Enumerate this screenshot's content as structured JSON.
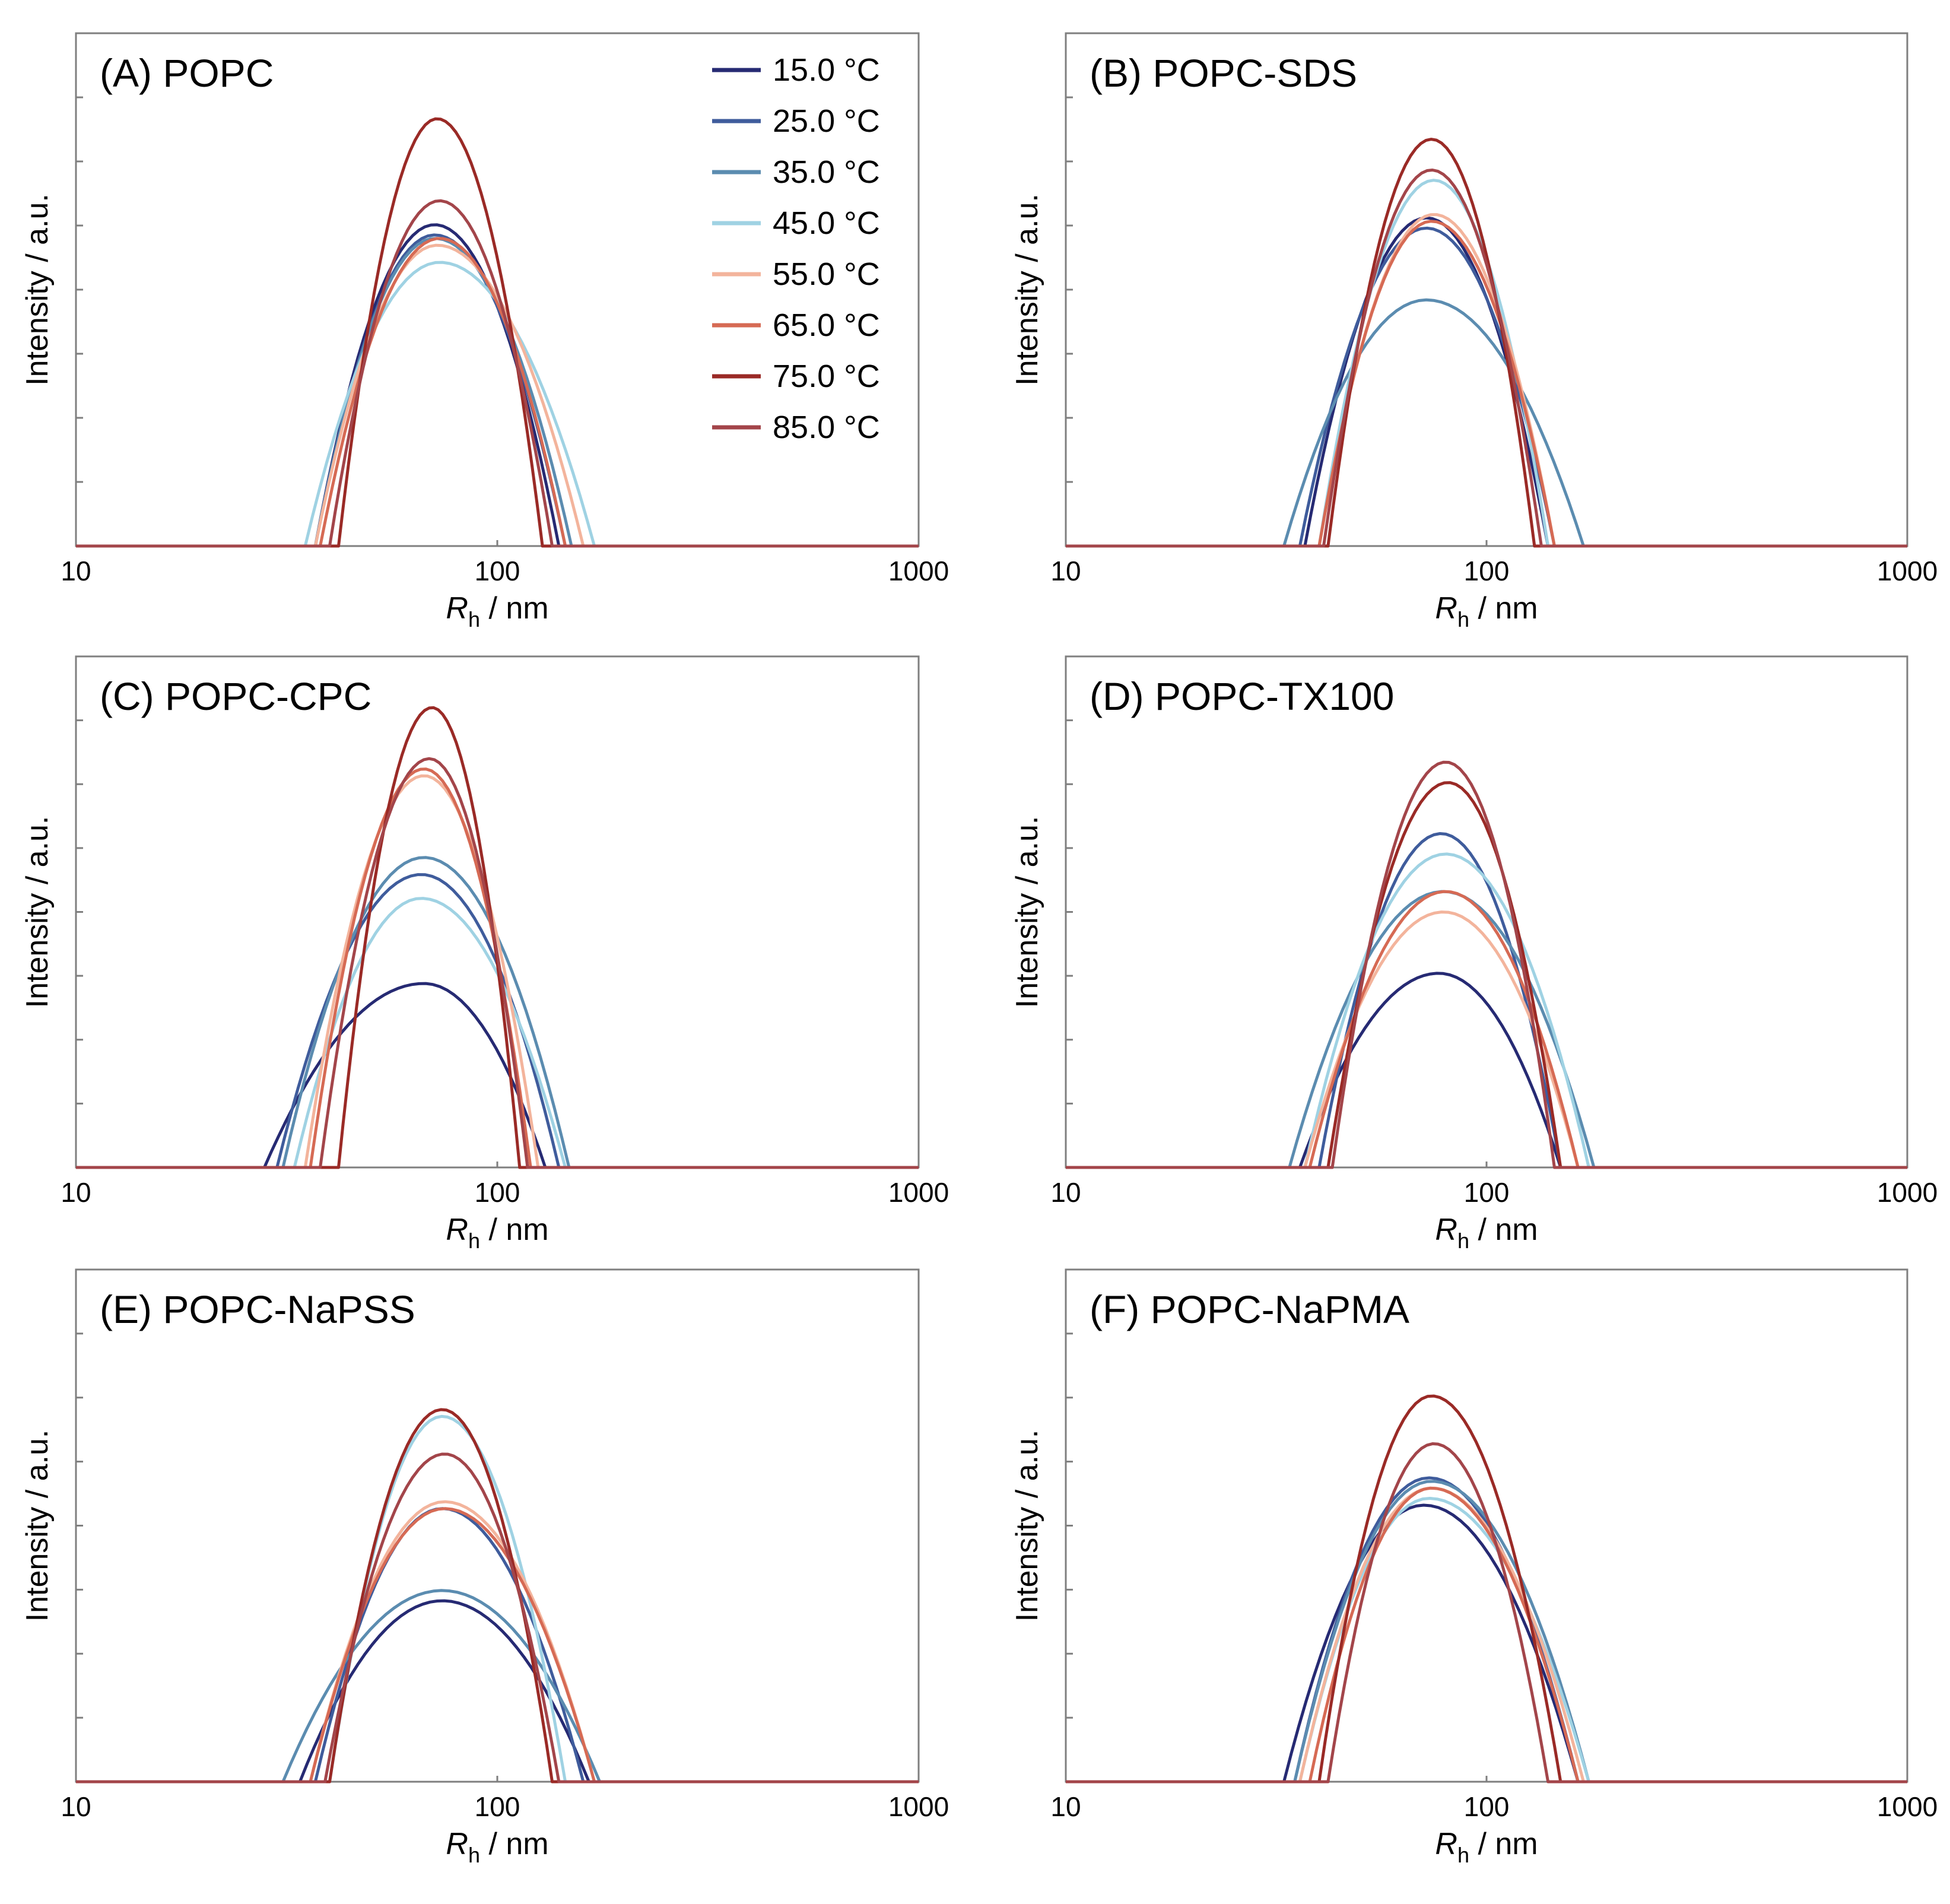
{
  "figure": {
    "legend_title_suffix": "",
    "x_axis_label_main": "R",
    "x_axis_label_sub": "h",
    "x_axis_label_unit": " / nm"
  },
  "colors": {
    "15.0 °C": "#262a73",
    "25.0 °C": "#3f5c9c",
    "35.0 °C": "#5b8cb0",
    "45.0 °C": "#9fd2e3",
    "55.0 °C": "#f3b49c",
    "65.0 °C": "#d66a54",
    "75.0 °C": "#9a2a26",
    "85.0 °C": "#a3454a",
    "axis": "#7f7f7f"
  },
  "legend": {
    "entries": [
      "15.0 °C",
      "25.0 °C",
      "35.0 °C",
      "45.0 °C",
      "55.0 °C",
      "65.0 °C",
      "75.0 °C",
      "85.0 °C"
    ]
  },
  "chart_data": [
    {
      "type": "line",
      "title": "(A) POPC",
      "xlabel": "R_h / nm",
      "ylabel": "Intensity / a.u.",
      "xscale": "log",
      "xlim": [
        10,
        1000
      ],
      "xticks": [
        "10",
        "100",
        "1000"
      ],
      "ylim": [
        0,
        7.5
      ],
      "y_ticks_count": 8,
      "legend_position": "top-right",
      "series": [
        {
          "name": "15.0 °C",
          "center": 71,
          "peak": 4.7,
          "lo": 37,
          "hi": 140
        },
        {
          "name": "25.0 °C",
          "center": 71,
          "peak": 4.55,
          "lo": 37,
          "hi": 145
        },
        {
          "name": "35.0 °C",
          "center": 71,
          "peak": 4.5,
          "lo": 37,
          "hi": 150
        },
        {
          "name": "45.0 °C",
          "center": 73,
          "peak": 4.15,
          "lo": 35,
          "hi": 170
        },
        {
          "name": "55.0 °C",
          "center": 72,
          "peak": 4.4,
          "lo": 37,
          "hi": 160
        },
        {
          "name": "65.0 °C",
          "center": 73,
          "peak": 4.5,
          "lo": 38,
          "hi": 145
        },
        {
          "name": "75.0 °C",
          "center": 72,
          "peak": 6.25,
          "lo": 42,
          "hi": 128
        },
        {
          "name": "85.0 °C",
          "center": 73,
          "peak": 5.05,
          "lo": 40,
          "hi": 135
        }
      ]
    },
    {
      "type": "line",
      "title": "(B) POPC-SDS",
      "xlabel": "R_h / nm",
      "ylabel": "Intensity / a.u.",
      "xscale": "log",
      "xlim": [
        10,
        1000
      ],
      "xticks": [
        "10",
        "100",
        "1000"
      ],
      "ylim": [
        0,
        7.5
      ],
      "y_ticks_count": 8,
      "legend_position": "none",
      "series": [
        {
          "name": "15.0 °C",
          "center": 72,
          "peak": 4.8,
          "lo": 37,
          "hi": 140
        },
        {
          "name": "25.0 °C",
          "center": 72,
          "peak": 4.65,
          "lo": 36,
          "hi": 145
        },
        {
          "name": "35.0 °C",
          "center": 72,
          "peak": 3.6,
          "lo": 33,
          "hi": 170
        },
        {
          "name": "45.0 °C",
          "center": 75,
          "peak": 5.35,
          "lo": 40,
          "hi": 140
        },
        {
          "name": "55.0 °C",
          "center": 75,
          "peak": 4.85,
          "lo": 40,
          "hi": 145
        },
        {
          "name": "65.0 °C",
          "center": 74,
          "peak": 4.75,
          "lo": 40,
          "hi": 145
        },
        {
          "name": "75.0 °C",
          "center": 74,
          "peak": 5.95,
          "lo": 42,
          "hi": 130
        },
        {
          "name": "85.0 °C",
          "center": 74,
          "peak": 5.5,
          "lo": 41,
          "hi": 135
        }
      ]
    },
    {
      "type": "line",
      "title": "(C) POPC-CPC",
      "xlabel": "R_h / nm",
      "ylabel": "Intensity / a.u.",
      "xscale": "log",
      "xlim": [
        10,
        1000
      ],
      "xticks": [
        "10",
        "100",
        "1000"
      ],
      "ylim": [
        0,
        7.5
      ],
      "y_ticks_count": 8,
      "legend_position": "none",
      "series": [
        {
          "name": "15.0 °C",
          "center": 67,
          "peak": 2.7,
          "lo": 28,
          "hi": 130
        },
        {
          "name": "25.0 °C",
          "center": 66,
          "peak": 4.3,
          "lo": 30,
          "hi": 140
        },
        {
          "name": "35.0 °C",
          "center": 67,
          "peak": 4.55,
          "lo": 31,
          "hi": 148
        },
        {
          "name": "45.0 °C",
          "center": 66,
          "peak": 3.95,
          "lo": 33,
          "hi": 145
        },
        {
          "name": "55.0 °C",
          "center": 67,
          "peak": 5.75,
          "lo": 35,
          "hi": 125
        },
        {
          "name": "65.0 °C",
          "center": 67,
          "peak": 5.85,
          "lo": 36,
          "hi": 120
        },
        {
          "name": "75.0 °C",
          "center": 70,
          "peak": 6.75,
          "lo": 42,
          "hi": 113
        },
        {
          "name": "85.0 °C",
          "center": 69,
          "peak": 6.0,
          "lo": 38,
          "hi": 118
        }
      ]
    },
    {
      "type": "line",
      "title": "(D) POPC-TX100",
      "xlabel": "R_h / nm",
      "ylabel": "Intensity / a.u.",
      "xscale": "log",
      "xlim": [
        10,
        1000
      ],
      "xticks": [
        "10",
        "100",
        "1000"
      ],
      "ylim": [
        0,
        7.5
      ],
      "y_ticks_count": 8,
      "legend_position": "none",
      "series": [
        {
          "name": "15.0 °C",
          "center": 77,
          "peak": 2.85,
          "lo": 36,
          "hi": 150
        },
        {
          "name": "25.0 °C",
          "center": 78,
          "peak": 4.9,
          "lo": 40,
          "hi": 150
        },
        {
          "name": "35.0 °C",
          "center": 79,
          "peak": 4.05,
          "lo": 34,
          "hi": 180
        },
        {
          "name": "45.0 °C",
          "center": 80,
          "peak": 4.6,
          "lo": 37,
          "hi": 175
        },
        {
          "name": "55.0 °C",
          "center": 79,
          "peak": 3.75,
          "lo": 37,
          "hi": 165
        },
        {
          "name": "65.0 °C",
          "center": 80,
          "peak": 4.05,
          "lo": 38,
          "hi": 165
        },
        {
          "name": "75.0 °C",
          "center": 81,
          "peak": 5.65,
          "lo": 42,
          "hi": 150
        },
        {
          "name": "85.0 °C",
          "center": 80,
          "peak": 5.95,
          "lo": 43,
          "hi": 145
        }
      ]
    },
    {
      "type": "line",
      "title": "(E) POPC-NaPSS",
      "xlabel": "R_h / nm",
      "ylabel": "Intensity / a.u.",
      "xscale": "log",
      "xlim": [
        10,
        1000
      ],
      "xticks": [
        "10",
        "100",
        "1000"
      ],
      "ylim": [
        0,
        7.5
      ],
      "y_ticks_count": 8,
      "legend_position": "none",
      "series": [
        {
          "name": "15.0 °C",
          "center": 74,
          "peak": 2.65,
          "lo": 34,
          "hi": 165
        },
        {
          "name": "25.0 °C",
          "center": 74,
          "peak": 4.0,
          "lo": 37,
          "hi": 160
        },
        {
          "name": "35.0 °C",
          "center": 74,
          "peak": 2.8,
          "lo": 31,
          "hi": 175
        },
        {
          "name": "45.0 °C",
          "center": 74,
          "peak": 5.35,
          "lo": 40,
          "hi": 145
        },
        {
          "name": "55.0 °C",
          "center": 75,
          "peak": 4.1,
          "lo": 36,
          "hi": 170
        },
        {
          "name": "65.0 °C",
          "center": 75,
          "peak": 4.0,
          "lo": 36,
          "hi": 170
        },
        {
          "name": "75.0 °C",
          "center": 74,
          "peak": 5.45,
          "lo": 40,
          "hi": 135
        },
        {
          "name": "85.0 °C",
          "center": 75,
          "peak": 4.8,
          "lo": 39,
          "hi": 140
        }
      ]
    },
    {
      "type": "line",
      "title": "(F) POPC-NaPMA",
      "xlabel": "R_h / nm",
      "ylabel": "Intensity / a.u.",
      "xscale": "log",
      "xlim": [
        10,
        1000
      ],
      "xticks": [
        "10",
        "100",
        "1000"
      ],
      "ylim": [
        0,
        7.5
      ],
      "y_ticks_count": 8,
      "legend_position": "none",
      "series": [
        {
          "name": "15.0 °C",
          "center": 71,
          "peak": 4.05,
          "lo": 33,
          "hi": 165
        },
        {
          "name": "25.0 °C",
          "center": 73,
          "peak": 4.45,
          "lo": 35,
          "hi": 165
        },
        {
          "name": "35.0 °C",
          "center": 74,
          "peak": 4.4,
          "lo": 35,
          "hi": 175
        },
        {
          "name": "45.0 °C",
          "center": 73,
          "peak": 4.15,
          "lo": 36,
          "hi": 175
        },
        {
          "name": "55.0 °C",
          "center": 74,
          "peak": 4.3,
          "lo": 36,
          "hi": 170
        },
        {
          "name": "65.0 °C",
          "center": 74,
          "peak": 4.3,
          "lo": 38,
          "hi": 165
        },
        {
          "name": "75.0 °C",
          "center": 74,
          "peak": 5.65,
          "lo": 40,
          "hi": 150
        },
        {
          "name": "85.0 °C",
          "center": 75,
          "peak": 4.95,
          "lo": 42,
          "hi": 140
        }
      ]
    }
  ]
}
